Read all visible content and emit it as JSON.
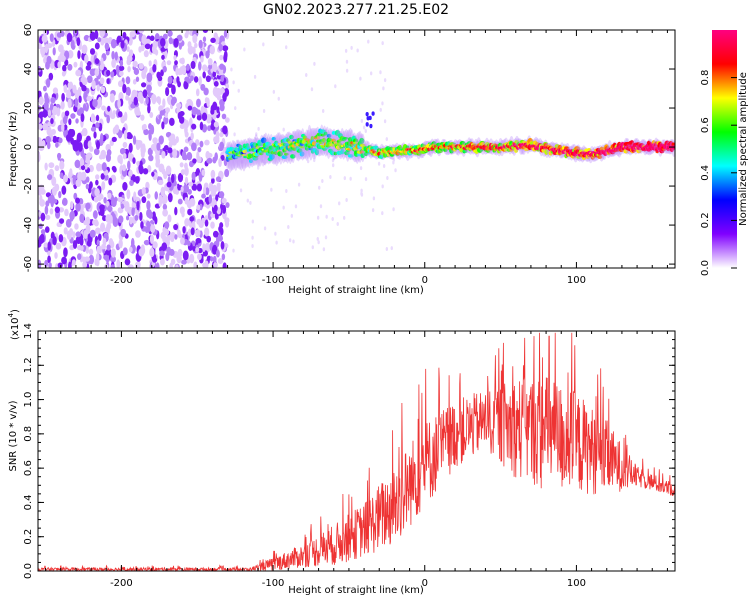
{
  "title": "GN02.2023.277.21.25.E02",
  "colors": {
    "snr_line": "#ee3333",
    "noise_dot": "#7b1cf2",
    "axis": "#000000"
  },
  "chart_data": [
    {
      "type": "heatmap",
      "xlabel": "Height of straight line (km)",
      "ylabel": "Frequency (Hz)",
      "xlim": [
        -255,
        165
      ],
      "ylim": [
        -62,
        60
      ],
      "x_ticks": [
        -200,
        -100,
        0,
        100
      ],
      "y_ticks": [
        -60,
        -40,
        -20,
        0,
        20,
        40,
        60
      ],
      "colorbar": {
        "label": "Normalized spectral amplitude",
        "range": [
          0,
          1
        ],
        "ticks": [
          "0.0",
          "0.2",
          "0.4",
          "0.6",
          "0.8"
        ],
        "colormap": [
          "#ffffff",
          "#8000ff",
          "#0000ff",
          "#00ffff",
          "#00ff00",
          "#ffff00",
          "#ff0000",
          "#ff0080"
        ]
      },
      "regions": [
        {
          "x": [
            -255,
            -130
          ],
          "content": "broadband noise, low amplitude (~0.1-0.3)"
        },
        {
          "x": [
            -130,
            165
          ],
          "content": "narrow band near 0 Hz, amplitude rising from ~0.4 to ~0.95"
        }
      ],
      "signal_centerline": [
        {
          "x": -130,
          "f": -5
        },
        {
          "x": -110,
          "f": -2
        },
        {
          "x": -90,
          "f": 0
        },
        {
          "x": -70,
          "f": 3
        },
        {
          "x": -50,
          "f": 1
        },
        {
          "x": -30,
          "f": -3
        },
        {
          "x": -10,
          "f": -2
        },
        {
          "x": 10,
          "f": 0
        },
        {
          "x": 30,
          "f": 0
        },
        {
          "x": 50,
          "f": 0
        },
        {
          "x": 70,
          "f": 1
        },
        {
          "x": 90,
          "f": -2
        },
        {
          "x": 110,
          "f": -4
        },
        {
          "x": 130,
          "f": 0
        },
        {
          "x": 165,
          "f": 0
        }
      ]
    },
    {
      "type": "line",
      "xlabel": "Height of straight line (km)",
      "ylabel": "SNR (10 * v/v)",
      "y_multiplier": "(x10",
      "y_multiplier_exp": "4",
      "xlim": [
        -255,
        165
      ],
      "ylim": [
        0,
        1.4
      ],
      "x_ticks": [
        -200,
        -100,
        0,
        100
      ],
      "y_ticks": [
        "0.0",
        "0.2",
        "0.4",
        "0.6",
        "0.8",
        "1.0",
        "1.2",
        "1.4"
      ],
      "series": [
        {
          "color": "#ee3333",
          "envelope": [
            {
              "x": -255,
              "mean": 0.01,
              "spread": 0.01
            },
            {
              "x": -115,
              "mean": 0.01,
              "spread": 0.01
            },
            {
              "x": -100,
              "mean": 0.04,
              "spread": 0.04
            },
            {
              "x": -80,
              "mean": 0.09,
              "spread": 0.07
            },
            {
              "x": -60,
              "mean": 0.15,
              "spread": 0.12
            },
            {
              "x": -40,
              "mean": 0.24,
              "spread": 0.16
            },
            {
              "x": -20,
              "mean": 0.38,
              "spread": 0.24
            },
            {
              "x": 0,
              "mean": 0.62,
              "spread": 0.26
            },
            {
              "x": 20,
              "mean": 0.8,
              "spread": 0.2
            },
            {
              "x": 40,
              "mean": 0.88,
              "spread": 0.18
            },
            {
              "x": 60,
              "mean": 0.84,
              "spread": 0.3
            },
            {
              "x": 80,
              "mean": 0.8,
              "spread": 0.35
            },
            {
              "x": 100,
              "mean": 0.75,
              "spread": 0.3
            },
            {
              "x": 120,
              "mean": 0.66,
              "spread": 0.22
            },
            {
              "x": 140,
              "mean": 0.55,
              "spread": 0.06
            },
            {
              "x": 165,
              "mean": 0.47,
              "spread": 0.04
            }
          ],
          "peaks": [
            {
              "x": -15,
              "y": 0.98
            },
            {
              "x": 72,
              "y": 1.37
            },
            {
              "x": 82,
              "y": 1.37
            },
            {
              "x": 65,
              "y": 1.2
            }
          ]
        }
      ]
    }
  ]
}
